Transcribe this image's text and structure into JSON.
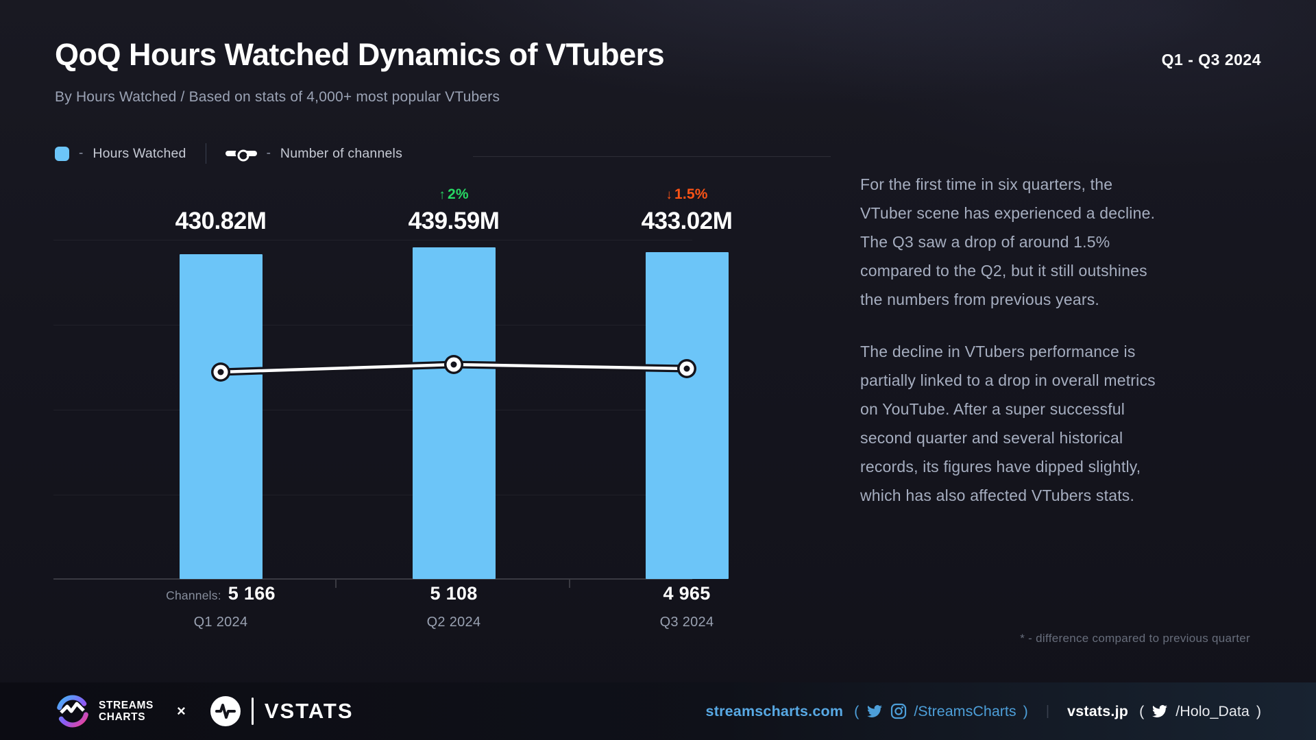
{
  "page": {
    "title": "QoQ Hours Watched Dynamics of VTubers",
    "subtitle": "By Hours Watched / Based on stats of 4,000+ most popular VTubers",
    "period": "Q1 - Q3 2024"
  },
  "legend": {
    "dash": "-",
    "hours_watched_label": "Hours Watched",
    "channels_label": "Number of channels"
  },
  "chart_data": {
    "type": "bar+line",
    "title": "QoQ Hours Watched Dynamics of VTubers",
    "categories": [
      "Q1 2024",
      "Q2 2024",
      "Q3 2024"
    ],
    "series": [
      {
        "name": "Hours Watched",
        "type": "bar",
        "unit": "hours (millions)",
        "values_millions": [
          430.82,
          439.59,
          433.02
        ],
        "labels": [
          "430.82M",
          "439.59M",
          "433.02M"
        ],
        "color": "#6cc5f8"
      },
      {
        "name": "Number of channels",
        "type": "line",
        "values": [
          5166,
          5108,
          4965
        ],
        "labels": [
          "5 166",
          "5 108",
          "4 965"
        ],
        "color": "#ffffff"
      }
    ],
    "deltas": [
      {
        "arrow": "",
        "text": "",
        "direction": "none",
        "color": ""
      },
      {
        "arrow": "↑",
        "text": "2%",
        "direction": "up",
        "color": "#27d964"
      },
      {
        "arrow": "↓",
        "text": "1.5%",
        "direction": "down",
        "color": "#fa5316"
      }
    ],
    "channels_prefix": "Channels:",
    "ylim_bar_millions": [
      0,
      460
    ],
    "grid": "horizontal-on",
    "legend_position": "top-left"
  },
  "insight": {
    "p1": "For the first time in six quarters, the\nVTuber scene has experienced a decline.\nThe Q3 saw a drop of around 1.5%\ncompared to the Q2, but it still outshines\nthe numbers from previous years.",
    "p2": "The decline in VTubers performance is\npartially linked to a drop in overall metrics\non YouTube. After a super successful\nsecond quarter and several historical\nrecords, its figures have dipped slightly,\nwhich has also affected VTubers stats."
  },
  "footnote": "* - difference compared to previous quarter",
  "footer": {
    "brand1_line1": "STREAMS",
    "brand1_line2": "CHARTS",
    "collab_x": "×",
    "brand2": "VSTATS",
    "site1": "streamscharts.com",
    "social1_open": "(",
    "social1_handle": "/StreamsCharts",
    "social1_close": ")",
    "divider": "|",
    "site2": "vstats.jp",
    "social2_open": "(",
    "social2_handle": "/Holo_Data",
    "social2_close": ")"
  }
}
